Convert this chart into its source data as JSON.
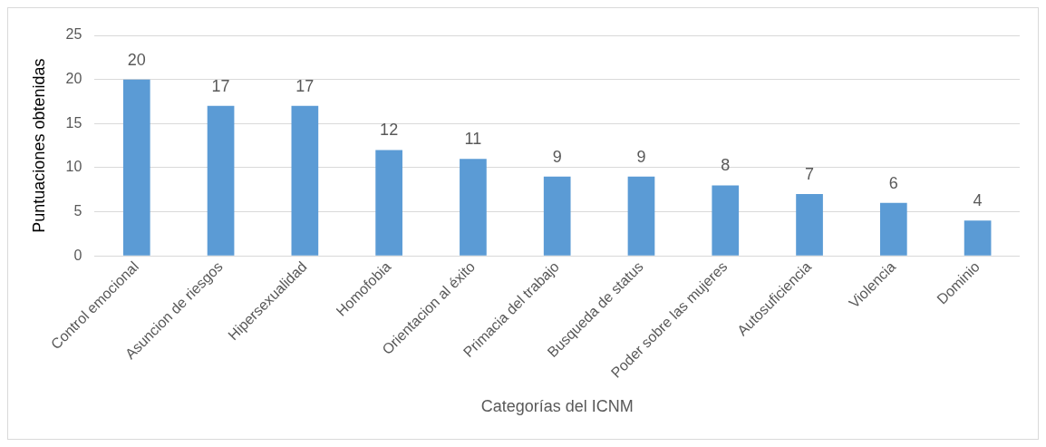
{
  "chart_data": {
    "type": "bar",
    "xlabel": "Categorías del ICNM",
    "ylabel": "Puntuaciones obtenidas",
    "categories": [
      "Control emocional",
      "Asuncion de riesgos",
      "Hipersexualidad",
      "Homofobia",
      "Orientacion al éxito",
      "Primacia del trabajo",
      "Busqueda de status",
      "Poder sobre las mujeres",
      "Autosuficiencia",
      "Violencia",
      "Dominio"
    ],
    "values": [
      20,
      17,
      17,
      12,
      11,
      9,
      9,
      8,
      7,
      6,
      4
    ],
    "color": "#5b9bd5",
    "ylim": [
      0,
      25
    ],
    "yticks": [
      0,
      5,
      10,
      15,
      20,
      25
    ],
    "grid": "y",
    "data_labels": true,
    "legend": false
  }
}
